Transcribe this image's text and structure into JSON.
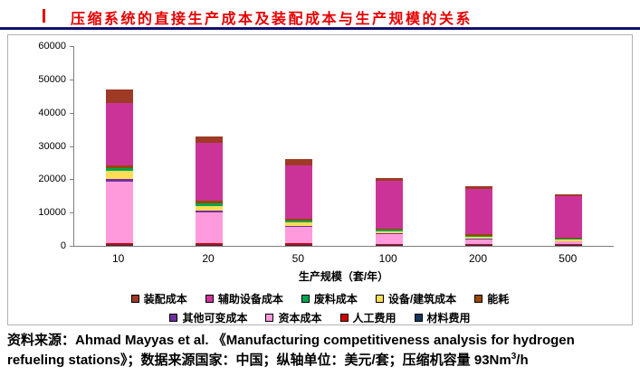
{
  "title": "压缩系统的直接生产成本及装配成本与生产规模的关系",
  "accent_colors": {
    "title_red": "#e60000",
    "rule_navy": "#10106e"
  },
  "chart_data": {
    "type": "bar",
    "stacked": true,
    "title": "压缩系统的直接生产成本及装配成本与生产规模的关系",
    "xlabel": "生产规模（套/年）",
    "ylabel": "美元/套",
    "ylim": [
      0,
      60000
    ],
    "ytick_step": 10000,
    "grid": false,
    "legend_position": "bottom",
    "categories": [
      "10",
      "20",
      "50",
      "100",
      "200",
      "500"
    ],
    "series": [
      {
        "name": "材料费用",
        "color": "#17375E",
        "values": [
          300,
          300,
          300,
          250,
          250,
          200
        ]
      },
      {
        "name": "人工费用",
        "color": "#D40000",
        "values": [
          500,
          500,
          400,
          400,
          400,
          350
        ]
      },
      {
        "name": "资本成本",
        "color": "#FF9BDC",
        "values": [
          18500,
          9200,
          5000,
          2800,
          1300,
          700
        ]
      },
      {
        "name": "其他可变成本",
        "color": "#7030A0",
        "values": [
          700,
          500,
          400,
          350,
          300,
          250
        ]
      },
      {
        "name": "设备/建筑成本",
        "color": "#FFDD55",
        "values": [
          2500,
          1500,
          900,
          600,
          400,
          350
        ]
      },
      {
        "name": "废料成本",
        "color": "#00A550",
        "values": [
          800,
          700,
          500,
          400,
          350,
          300
        ]
      },
      {
        "name": "能耗",
        "color": "#974806",
        "values": [
          1000,
          800,
          600,
          500,
          450,
          400
        ]
      },
      {
        "name": "辅助设备成本",
        "color": "#CC3399",
        "values": [
          18700,
          17500,
          16000,
          14200,
          13550,
          12450
        ]
      },
      {
        "name": "装配成本",
        "color": "#9E3A26",
        "values": [
          4000,
          2000,
          1900,
          1000,
          1000,
          500
        ]
      }
    ],
    "totals": [
      47000,
      33000,
      26000,
      20500,
      18000,
      15500
    ],
    "legend_rows": [
      [
        "装配成本",
        "辅助设备成本",
        "废料成本",
        "设备/建筑成本",
        "能耗"
      ],
      [
        "其他可变成本",
        "资本成本",
        "人工费用",
        "材料费用"
      ]
    ]
  },
  "footer": {
    "line1": "资料来源：Ahmad Mayyas et al. 《Manufacturing competitiveness analysis for hydrogen",
    "line2_text": "refueling stations》；数据来源国家：中国；纵轴单位：美元/套；压缩机容量 93Nm",
    "line2_sup": "3",
    "line2_suffix": "/h"
  }
}
